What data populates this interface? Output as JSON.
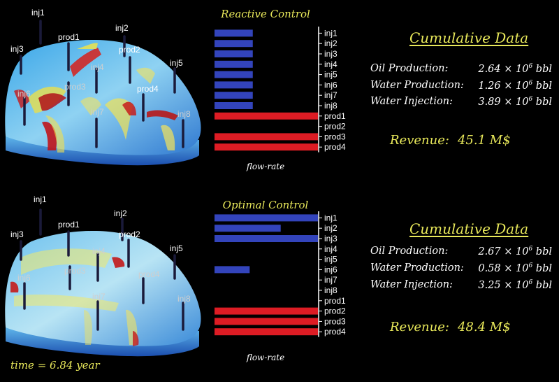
{
  "panels": [
    {
      "control_title": "Reactive Control",
      "cumulative_title": "Cumulative Data",
      "oil_label": "Oil Production:",
      "oil_value": "2.64 × 10",
      "water_prod_label": "Water Production:",
      "water_prod_value": "1.26 × 10",
      "water_inj_label": "Water Injection:",
      "water_inj_value": "3.89 × 10",
      "exponent": "6",
      "unit": "bbl",
      "revenue_label": "Revenue:",
      "revenue_value": "45.1 M$",
      "xlabel": "flow-rate",
      "wells": {
        "inj1": "inj1",
        "inj2": "inj2",
        "inj3": "inj3",
        "inj4": "inj4",
        "inj5": "inj5",
        "inj6": "inj6",
        "inj7": "inj7",
        "inj8": "inj8",
        "prod1": "prod1",
        "prod2": "prod2",
        "prod3": "prod3",
        "prod4": "prod4"
      }
    },
    {
      "control_title": "Optimal Control",
      "cumulative_title": "Cumulative Data",
      "oil_label": "Oil Production:",
      "oil_value": "2.67 × 10",
      "water_prod_label": "Water Production:",
      "water_prod_value": "0.58 × 10",
      "water_inj_label": "Water Injection:",
      "water_inj_value": "3.25 × 10",
      "exponent": "6",
      "unit": "bbl",
      "revenue_label": "Revenue:",
      "revenue_value": "48.4 M$",
      "xlabel": "flow-rate",
      "wells": {
        "inj1": "inj1",
        "inj2": "inj2",
        "inj3": "inj3",
        "inj4": "inj4",
        "inj5": "inj5",
        "inj6": "inj6",
        "inj7": "inj7",
        "inj8": "inj8",
        "prod1": "prod1",
        "prod2": "prod2",
        "prod3": "prod3",
        "prod4": "prod4"
      }
    }
  ],
  "time_label": "time = 6.84 year",
  "colors": {
    "injector": "#3344bb",
    "producer": "#dd1c24",
    "accent": "#e8e85a"
  },
  "chart_data": [
    {
      "type": "bar",
      "orientation": "horizontal",
      "title": "Reactive Control",
      "xlabel": "flow-rate",
      "categories": [
        "inj1",
        "inj2",
        "inj3",
        "inj4",
        "inj5",
        "inj6",
        "inj7",
        "inj8",
        "prod1",
        "prod2",
        "prod3",
        "prod4"
      ],
      "values": [
        0.37,
        0.37,
        0.37,
        0.37,
        0.37,
        0.37,
        0.37,
        0.37,
        1.0,
        0.0,
        1.0,
        1.0
      ],
      "xlim": [
        0,
        1
      ]
    },
    {
      "type": "bar",
      "orientation": "horizontal",
      "title": "Optimal Control",
      "xlabel": "flow-rate",
      "categories": [
        "inj1",
        "inj2",
        "inj3",
        "inj4",
        "inj5",
        "inj6",
        "inj7",
        "inj8",
        "prod1",
        "prod2",
        "prod3",
        "prod4"
      ],
      "values": [
        1.0,
        0.64,
        1.0,
        0.0,
        0.0,
        0.34,
        0.0,
        0.0,
        0.0,
        1.0,
        1.0,
        1.0
      ],
      "xlim": [
        0,
        1
      ]
    }
  ]
}
